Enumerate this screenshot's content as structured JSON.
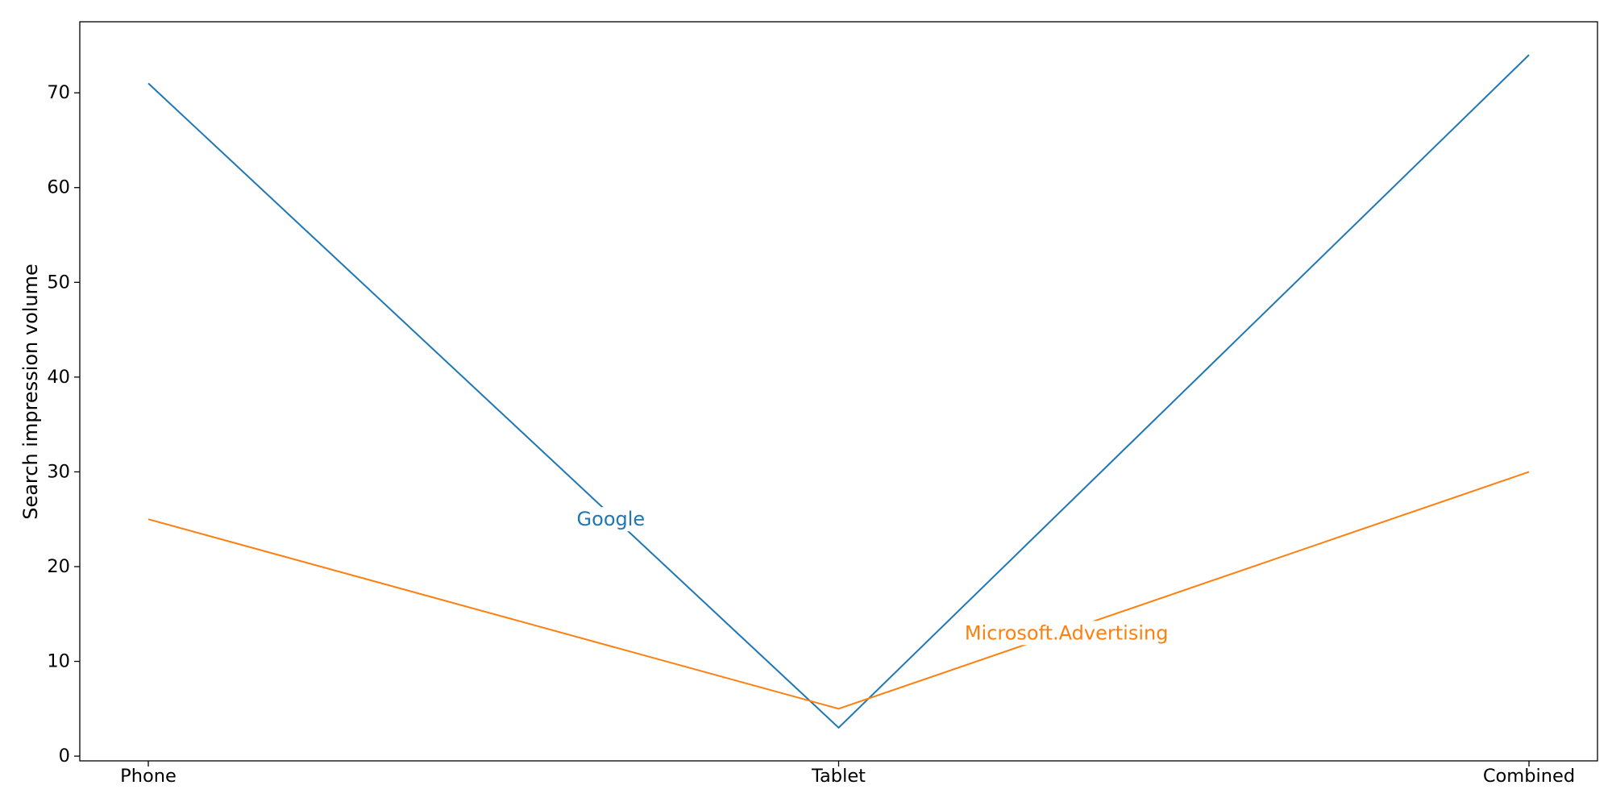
{
  "chart_data": {
    "type": "line",
    "title": "",
    "xlabel": "",
    "ylabel": "Search impression volume",
    "categories": [
      "Phone",
      "Tablet",
      "Combined"
    ],
    "ylim": [
      -0.5,
      77.5
    ],
    "yticks": [
      0,
      10,
      20,
      30,
      40,
      50,
      60,
      70
    ],
    "grid": false,
    "legend": "none",
    "series": [
      {
        "name": "Google",
        "values": [
          71,
          3,
          74
        ],
        "color": "#1f77b4",
        "label_position": {
          "x": 0.67,
          "y": 25
        }
      },
      {
        "name": "Microsoft.Advertising",
        "values": [
          25,
          5,
          30
        ],
        "color": "#ff7f0e",
        "label_position": {
          "x": 1.33,
          "y": 13
        }
      }
    ]
  }
}
